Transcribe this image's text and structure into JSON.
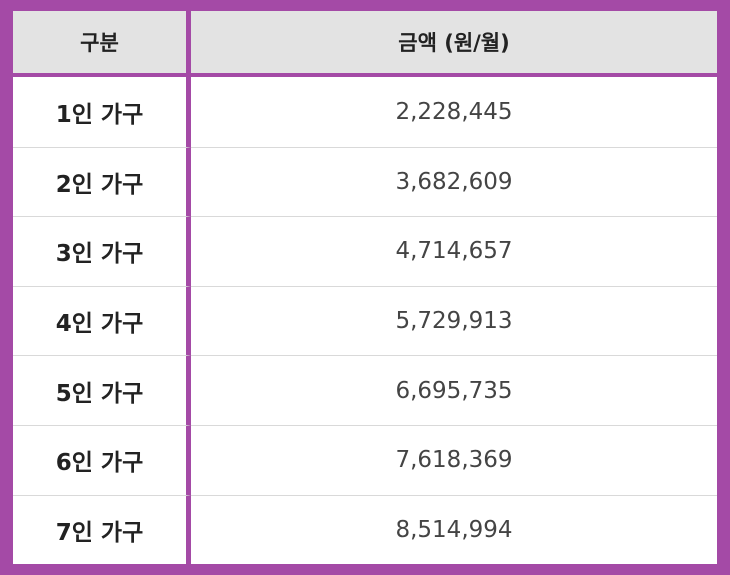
{
  "table": {
    "header": {
      "category": "구분",
      "amount": "금액 (원/월)"
    },
    "rows": [
      {
        "label": "1인 가구",
        "amount": "2,228,445"
      },
      {
        "label": "2인 가구",
        "amount": "3,682,609"
      },
      {
        "label": "3인 가구",
        "amount": "4,714,657"
      },
      {
        "label": "4인 가구",
        "amount": "5,729,913"
      },
      {
        "label": "5인 가구",
        "amount": "6,695,735"
      },
      {
        "label": "6인 가구",
        "amount": "7,618,369"
      },
      {
        "label": "7인 가구",
        "amount": "8,514,994"
      }
    ],
    "colors": {
      "border": "#a44aa6",
      "header_bg": "#e3e3e3"
    }
  }
}
